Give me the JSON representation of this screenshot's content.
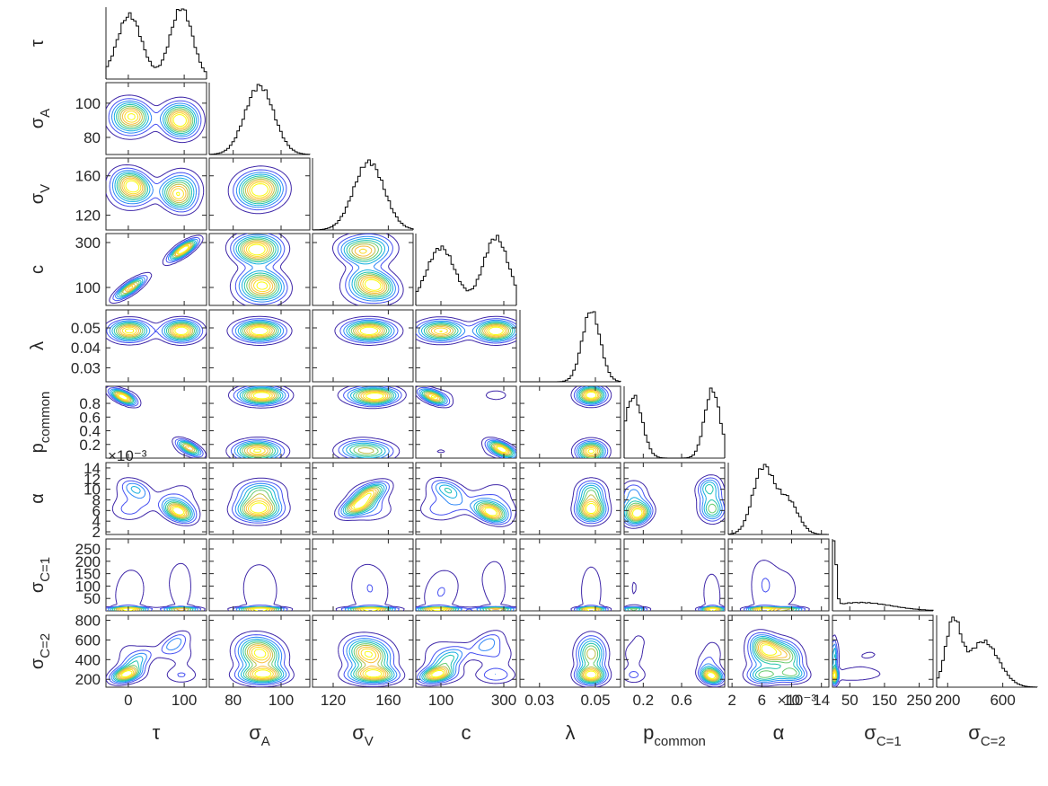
{
  "chart_data": {
    "type": "corner",
    "variables": [
      {
        "key": "tau",
        "label": "τ",
        "sub": "",
        "range": [
          -40,
          140
        ],
        "ticks": [
          0,
          100
        ],
        "tick_labels": [
          "0",
          "100"
        ],
        "modes": [
          [
            2,
            0.9,
            22
          ],
          [
            95,
            1.0,
            20
          ]
        ]
      },
      {
        "key": "sigma_A",
        "label": "σ",
        "sub": "A",
        "range": [
          70,
          112
        ],
        "ticks": [
          80,
          100
        ],
        "tick_labels": [
          "80",
          "100"
        ],
        "modes": [
          [
            91,
            1.0,
            6
          ]
        ]
      },
      {
        "key": "sigma_V",
        "label": "σ",
        "sub": "V",
        "range": [
          105,
          178
        ],
        "ticks": [
          120,
          160
        ],
        "tick_labels": [
          "120",
          "160"
        ],
        "modes": [
          [
            146,
            1.0,
            11
          ]
        ]
      },
      {
        "key": "c",
        "label": "c",
        "sub": "",
        "range": [
          20,
          340
        ],
        "ticks": [
          100,
          300
        ],
        "tick_labels": [
          "100",
          "300"
        ],
        "modes": [
          [
            100,
            0.85,
            45
          ],
          [
            275,
            1.0,
            40
          ]
        ]
      },
      {
        "key": "lambda",
        "label": "λ",
        "sub": "",
        "range": [
          0.023,
          0.059
        ],
        "ticks": [
          0.03,
          0.05
        ],
        "tick_labels": [
          "0.03",
          "0.05"
        ],
        "ytick_labels_override": {
          "ticks": [
            0.03,
            0.04,
            0.05
          ],
          "labels": [
            "0.03",
            "0.04",
            "0.05"
          ]
        },
        "modes": [
          [
            0.0485,
            1.0,
            0.0032
          ]
        ]
      },
      {
        "key": "p_common",
        "label": "p",
        "sub": "common",
        "range": [
          0.0,
          1.05
        ],
        "ticks": [
          0.2,
          0.6
        ],
        "tick_labels": [
          "0.2",
          "0.6"
        ],
        "ytick_labels_override": {
          "ticks": [
            0.2,
            0.4,
            0.6,
            0.8
          ],
          "labels": [
            "0.2",
            "0.4",
            "0.6",
            "0.8"
          ]
        },
        "modes": [
          [
            0.1,
            0.9,
            0.09
          ],
          [
            0.92,
            1.0,
            0.08
          ]
        ]
      },
      {
        "key": "alpha",
        "label": "α",
        "sub": "",
        "range": [
          1.5,
          15
        ],
        "ticks": [
          2,
          6,
          10,
          14
        ],
        "tick_labels": [
          "2",
          "6",
          "10",
          "14"
        ],
        "ytick_labels_override": {
          "ticks": [
            2,
            4,
            6,
            8,
            10,
            12,
            14
          ],
          "labels": [
            "2",
            "4",
            "6",
            "8",
            "10",
            "12",
            "14"
          ]
        },
        "exponent": "×10⁻³",
        "modes": [
          [
            6.2,
            1.0,
            1.4
          ],
          [
            9.5,
            0.5,
            1.4
          ]
        ]
      },
      {
        "key": "sigma_C1",
        "label": "σ",
        "sub": "C=1",
        "range": [
          0,
          290
        ],
        "ticks": [
          50,
          150,
          250
        ],
        "tick_labels": [
          "50",
          "150",
          "250"
        ],
        "ytick_labels_override": {
          "ticks": [
            50,
            100,
            150,
            200,
            250
          ],
          "labels": [
            "50",
            "100",
            "150",
            "200",
            "250"
          ]
        },
        "modes": [
          [
            5,
            1.0,
            6
          ],
          [
            80,
            0.13,
            90
          ]
        ]
      },
      {
        "key": "sigma_C2",
        "label": "σ",
        "sub": "C=2",
        "range": [
          120,
          850
        ],
        "ticks": [
          200,
          600
        ],
        "tick_labels": [
          "200",
          "600"
        ],
        "ytick_labels_override": {
          "ticks": [
            200,
            400,
            600,
            800
          ],
          "labels": [
            "200",
            "400",
            "600",
            "800"
          ]
        },
        "modes": [
          [
            240,
            1.0,
            55
          ],
          [
            460,
            0.72,
            110
          ]
        ]
      }
    ],
    "pairs_2d": "all lower-triangle pairs (row > col)",
    "contour_levels": 10,
    "contour_colormap": [
      "#3e26a8",
      "#4650f1",
      "#2e87f7",
      "#13afe0",
      "#1fc3aa",
      "#6acb6f",
      "#bcbe47",
      "#f9bd3c",
      "#fadb26",
      "#f9fb0e"
    ],
    "hist_color": "#000000",
    "grid": false
  }
}
